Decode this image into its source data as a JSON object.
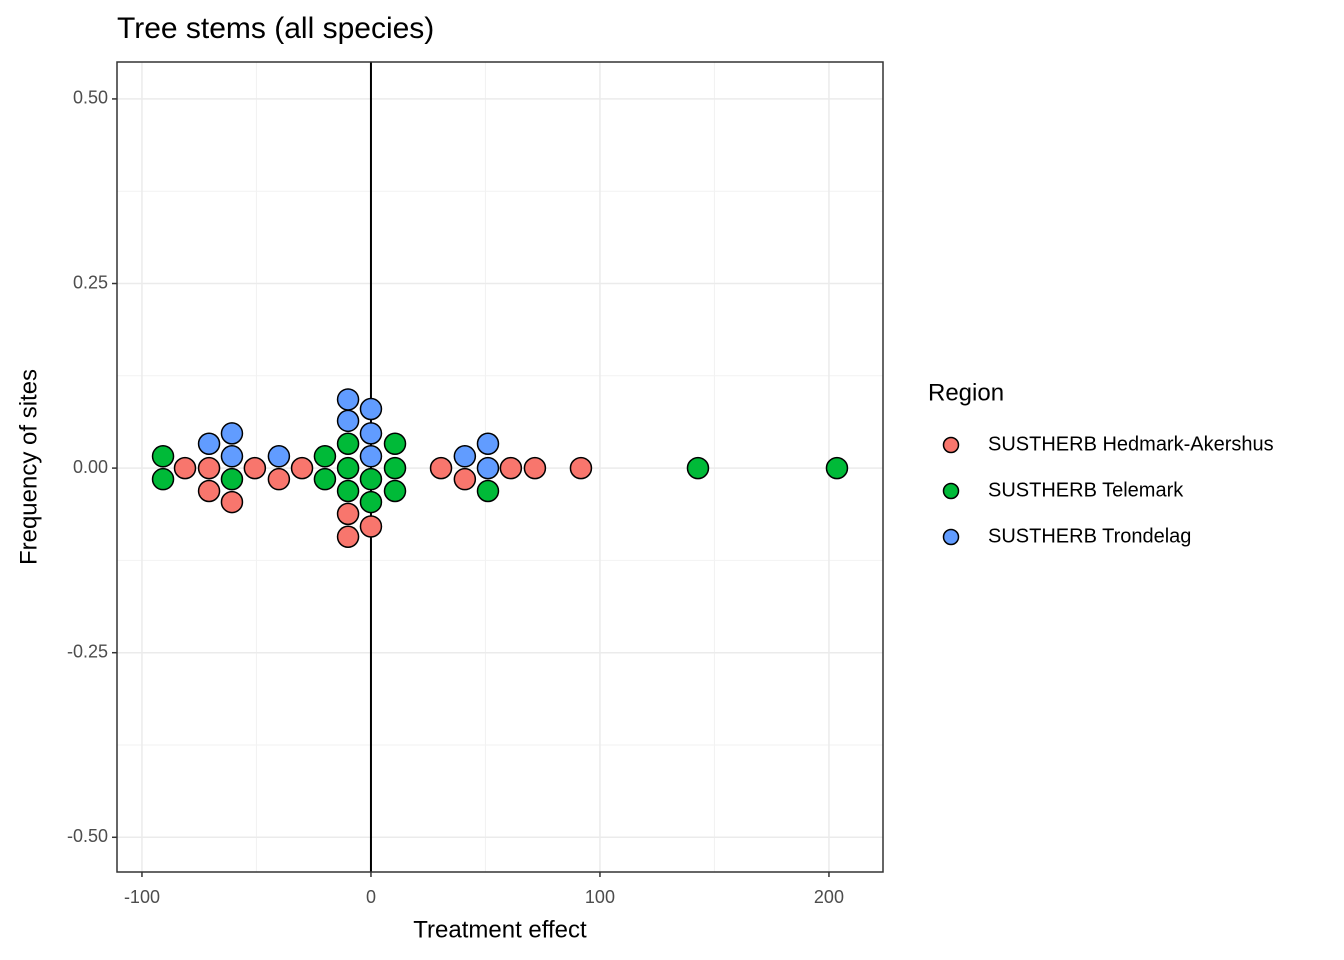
{
  "chart_data": {
    "type": "scatter",
    "title": "Tree stems (all species)",
    "x_label": "Treatment effect",
    "y_label": "Frequency of sites",
    "legend_title": "Region",
    "legend_position": "right",
    "xlim": [
      -110.9,
      223.6
    ],
    "ylim": [
      -0.547,
      0.55
    ],
    "xticks": [
      -100,
      0,
      100,
      200
    ],
    "yticks": [
      {
        "value": -0.5,
        "label": "-0.50"
      },
      {
        "value": -0.25,
        "label": "-0.25"
      },
      {
        "value": 0,
        "label": "0.00"
      },
      {
        "value": 0.25,
        "label": "0.25"
      },
      {
        "value": 0.5,
        "label": "0.50"
      }
    ],
    "x_minor_grid": [
      -50,
      50,
      150
    ],
    "y_minor_grid": [
      -0.375,
      -0.125,
      0.125,
      0.375
    ],
    "grid": true,
    "vline": 0,
    "series": [
      {
        "name": "SUSTHERB Hedmark-Akershus",
        "color": "#F8766D",
        "x": [
          -81.2,
          -70.7,
          -70.7,
          -60.7,
          -50.7,
          -40.2,
          -30.1,
          -10,
          -10,
          0,
          30.6,
          41,
          61.1,
          71.6,
          91.7
        ],
        "values": [
          0,
          0,
          -0.031,
          -0.046,
          0,
          -0.015,
          0,
          -0.062,
          -0.093,
          -0.079,
          0,
          -0.015,
          0,
          0,
          0
        ]
      },
      {
        "name": "SUSTHERB Telemark",
        "color": "#00BA38",
        "x": [
          -90.8,
          -90.8,
          -60.7,
          -20.1,
          -20.1,
          -10,
          -10,
          -10,
          0,
          0,
          10.5,
          10.5,
          10.5,
          51.1,
          142.8,
          203.5
        ],
        "values": [
          0.016,
          -0.015,
          -0.015,
          0.016,
          -0.015,
          0.033,
          0,
          -0.031,
          -0.015,
          -0.046,
          0.033,
          0,
          -0.031,
          -0.031,
          0,
          0
        ]
      },
      {
        "name": "SUSTHERB Trondelag",
        "color": "#619CFF",
        "x": [
          -70.7,
          -60.7,
          -60.7,
          -40.2,
          -10,
          -10,
          0,
          0,
          0,
          41,
          51.1,
          51.1
        ],
        "values": [
          0.033,
          0.047,
          0.016,
          0.016,
          0.093,
          0.064,
          0.08,
          0.047,
          0.016,
          0.016,
          0.033,
          0
        ]
      }
    ]
  }
}
